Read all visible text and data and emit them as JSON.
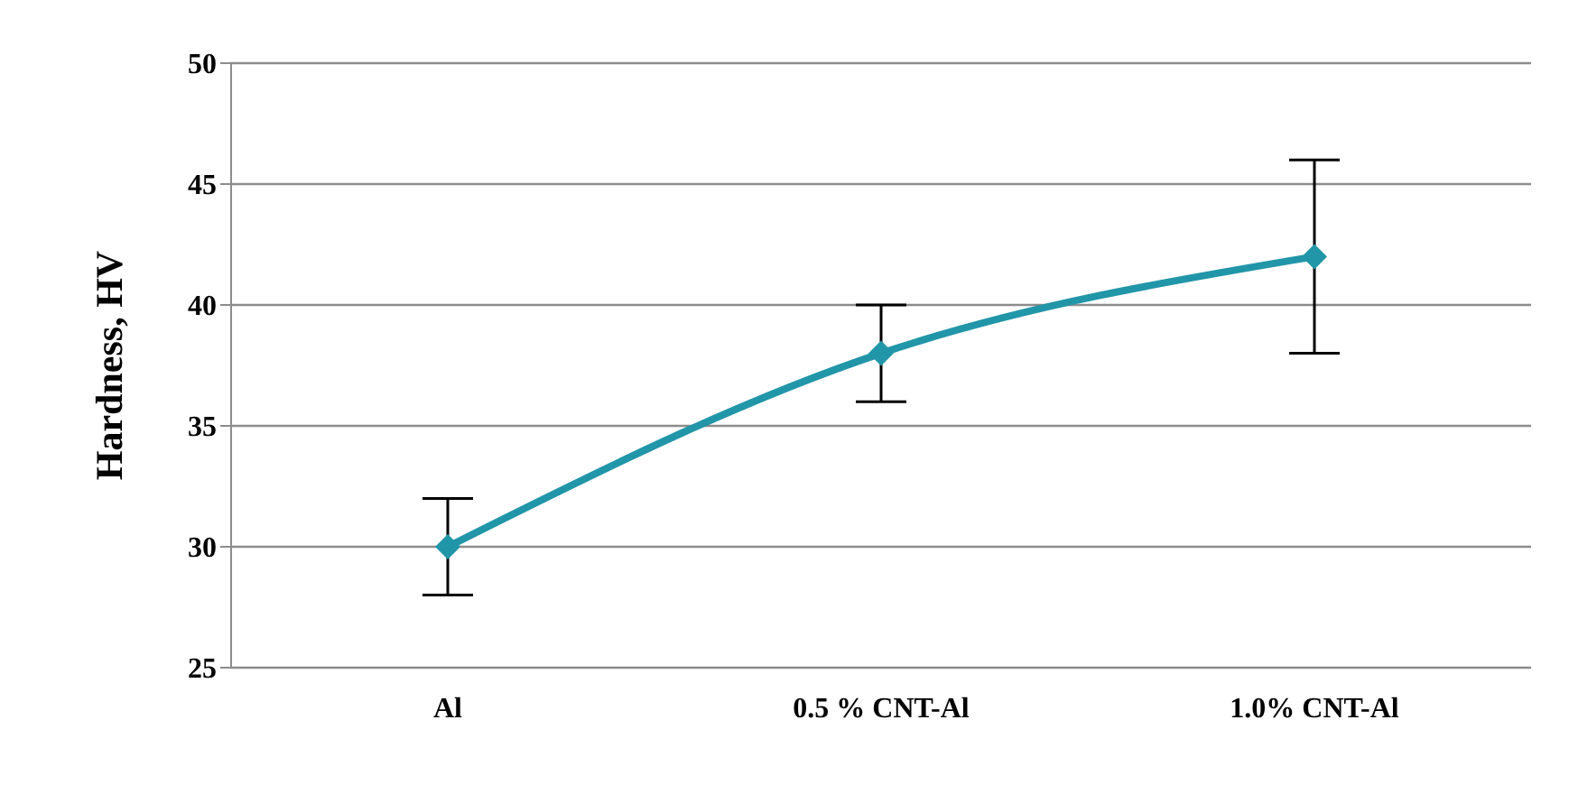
{
  "chart_data": {
    "type": "line",
    "ylabel": "Hardness, HV",
    "categories": [
      "Al",
      "0.5 % CNT-Al",
      "1.0% CNT-Al"
    ],
    "series": [
      {
        "color": "#2196a8",
        "values": [
          30,
          38,
          42
        ],
        "errors": [
          2,
          2,
          4
        ]
      }
    ],
    "ylim": [
      25,
      50
    ],
    "yticks": [
      25,
      30,
      35,
      40,
      45,
      50
    ],
    "grid": "y",
    "legend": false,
    "marker": "diamond",
    "line_style": "solid"
  }
}
